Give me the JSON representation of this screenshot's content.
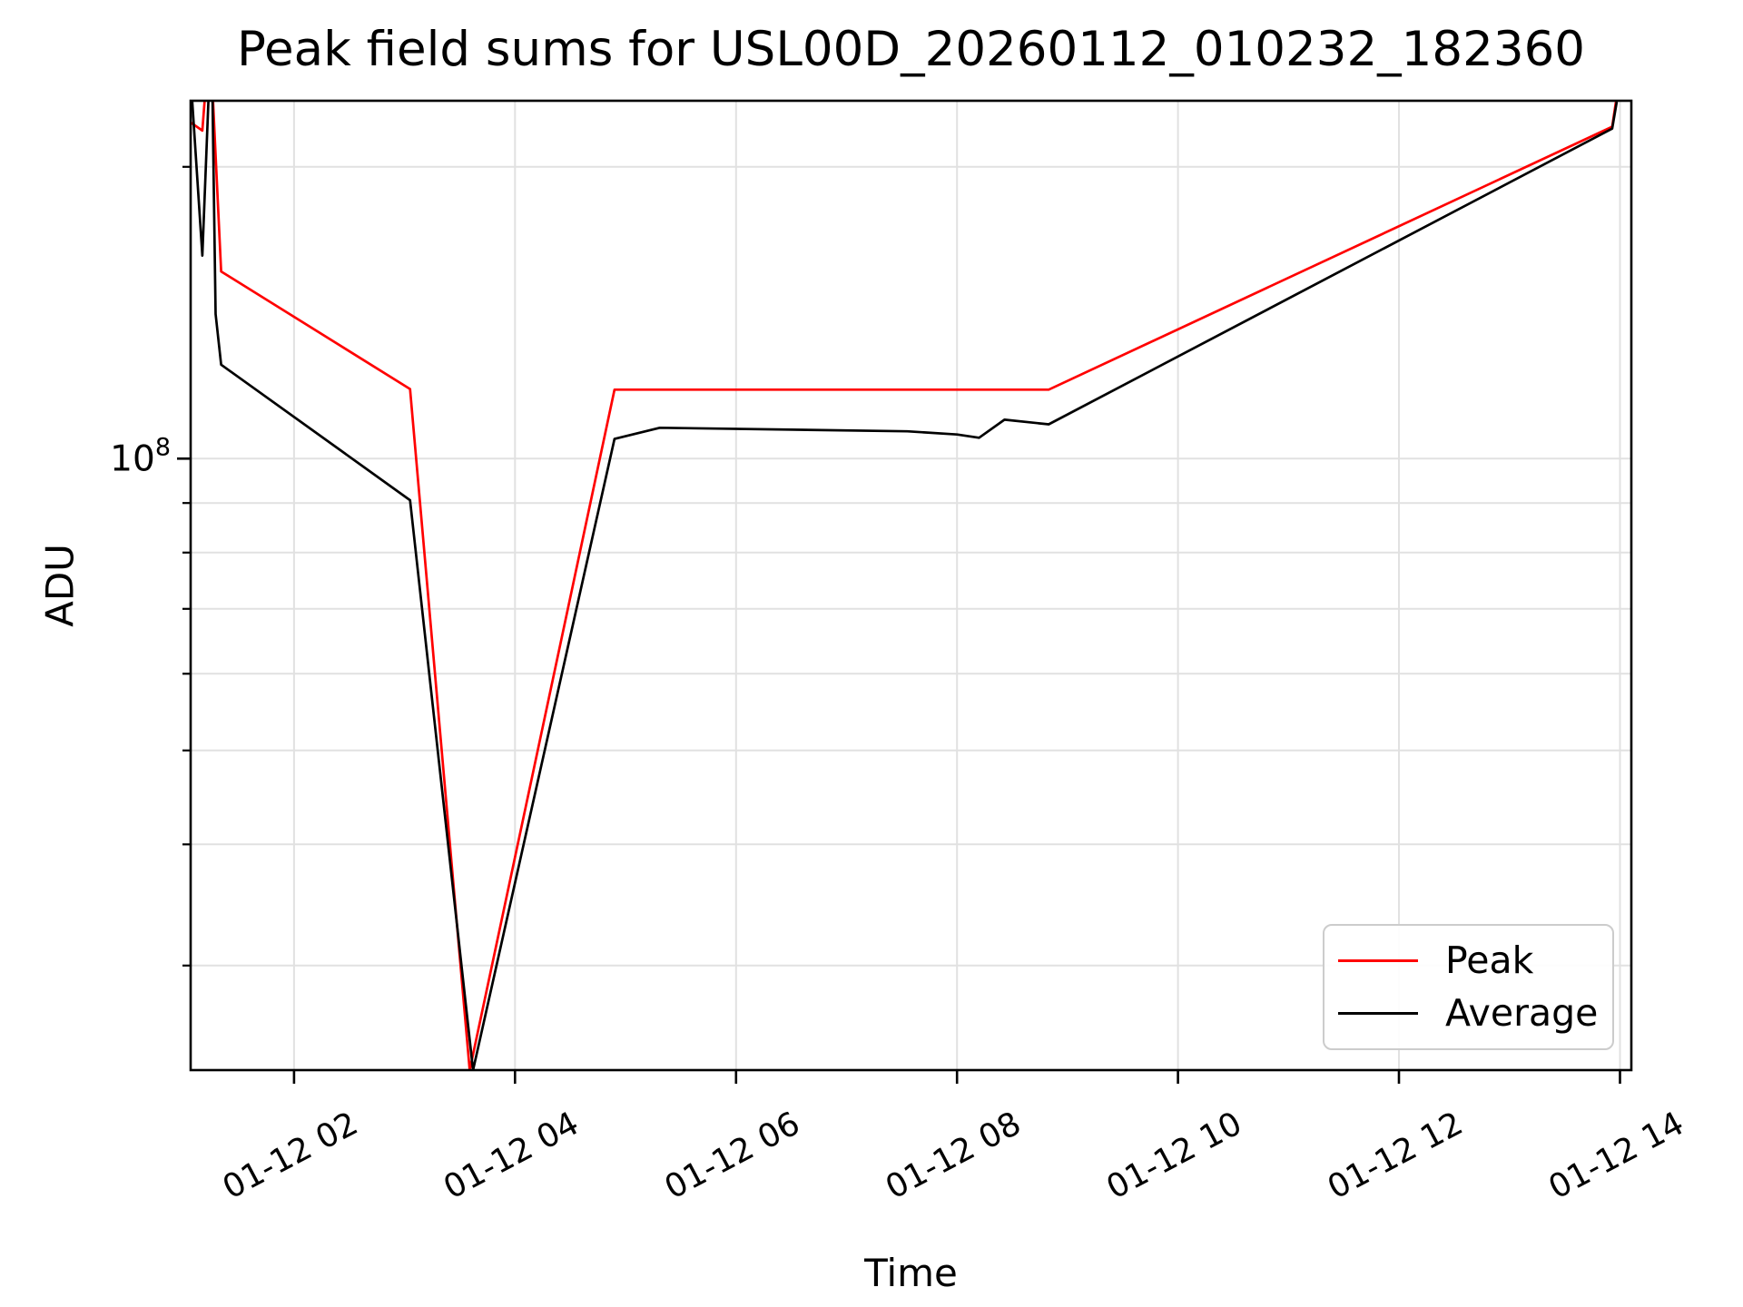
{
  "chart_data": {
    "type": "line",
    "title": "Peak field sums for USL00D_20260112_010232_182360",
    "xlabel": "Time",
    "ylabel": "ADU",
    "yscale": "log",
    "grid": true,
    "xlim_hours": [
      1.064,
      14.103
    ],
    "ylim": [
      23400000,
      234000000
    ],
    "x_ticks": [
      {
        "hour": 2,
        "label": "01-12 02"
      },
      {
        "hour": 4,
        "label": "01-12 04"
      },
      {
        "hour": 6,
        "label": "01-12 06"
      },
      {
        "hour": 8,
        "label": "01-12 08"
      },
      {
        "hour": 10,
        "label": "01-12 10"
      },
      {
        "hour": 12,
        "label": "01-12 12"
      },
      {
        "hour": 14,
        "label": "01-12 14"
      }
    ],
    "y_major_ticks": [
      {
        "value": 100000000,
        "label_base": "10",
        "label_exp": "8"
      }
    ],
    "y_minor_tick_values": [
      200000000,
      90000000,
      80000000,
      70000000,
      60000000,
      50000000,
      40000000,
      30000000
    ],
    "series": [
      {
        "name": "Peak",
        "color": "#ff0000",
        "points": [
          [
            1.07,
            222000000
          ],
          [
            1.17,
            218000000
          ],
          [
            1.2,
            242000000
          ],
          [
            1.26,
            242000000
          ],
          [
            1.34,
            156000000
          ],
          [
            3.05,
            118000000
          ],
          [
            3.59,
            23400000
          ],
          [
            4.9,
            117800000
          ],
          [
            8.83,
            117800000
          ],
          [
            13.93,
            220000000
          ],
          [
            13.97,
            236000000
          ]
        ]
      },
      {
        "name": "Average",
        "color": "#000000",
        "points": [
          [
            1.07,
            242000000
          ],
          [
            1.17,
            162000000
          ],
          [
            1.23,
            242000000
          ],
          [
            1.26,
            242000000
          ],
          [
            1.29,
            141000000
          ],
          [
            1.34,
            125000000
          ],
          [
            3.05,
            90600000
          ],
          [
            3.62,
            23400000
          ],
          [
            4.9,
            104800000
          ],
          [
            5.31,
            107600000
          ],
          [
            7.55,
            106700000
          ],
          [
            8.0,
            105900000
          ],
          [
            8.2,
            105100000
          ],
          [
            8.43,
            109700000
          ],
          [
            8.83,
            108500000
          ],
          [
            13.93,
            219000000
          ],
          [
            13.97,
            233000000
          ]
        ]
      }
    ],
    "legend": {
      "position": "lower right",
      "entries": [
        {
          "label": "Peak",
          "color": "#ff0000"
        },
        {
          "label": "Average",
          "color": "#000000"
        }
      ]
    }
  },
  "colors": {
    "grid": "#e1e1e1",
    "spine": "#000000",
    "text": "#000000",
    "legend_border": "#cccccc",
    "background": "#ffffff"
  }
}
